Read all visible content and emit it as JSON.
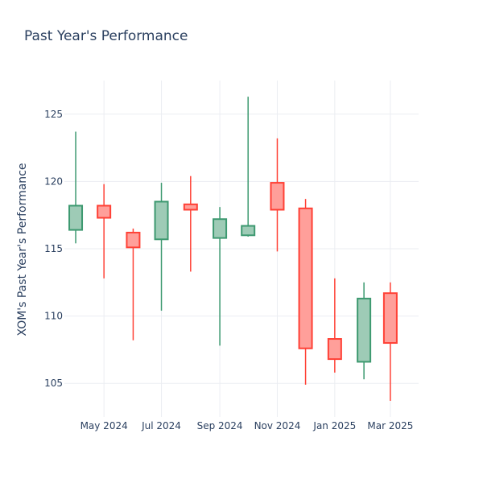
{
  "chart_data": {
    "type": "candlestick",
    "title": "Past Year's Performance",
    "xlabel": "",
    "ylabel": "XOM's Past Year's Performance",
    "ylim": [
      102.5,
      127.5
    ],
    "yticks": [
      105,
      110,
      115,
      120,
      125
    ],
    "xlim": [
      "2024-03-20",
      "2025-03-31"
    ],
    "xticks": [
      {
        "date": "2024-05-01",
        "label": "May 2024"
      },
      {
        "date": "2024-07-01",
        "label": "Jul 2024"
      },
      {
        "date": "2024-09-01",
        "label": "Sep 2024"
      },
      {
        "date": "2024-11-01",
        "label": "Nov 2024"
      },
      {
        "date": "2025-01-01",
        "label": "Jan 2025"
      },
      {
        "date": "2025-03-01",
        "label": "Mar 2025"
      }
    ],
    "colors": {
      "increasing_line": "#3d9970",
      "increasing_fill": "#9ecbb6",
      "decreasing_line": "#ff4136",
      "decreasing_fill": "#ff9f9a",
      "grid": "#ebedf2",
      "text": "#2a3f5f"
    },
    "candles": [
      {
        "date": "2024-04-01",
        "open": 116.4,
        "high": 123.7,
        "low": 115.4,
        "close": 118.2
      },
      {
        "date": "2024-05-01",
        "open": 118.2,
        "high": 119.8,
        "low": 112.8,
        "close": 117.3
      },
      {
        "date": "2024-06-01",
        "open": 116.2,
        "high": 116.5,
        "low": 108.2,
        "close": 115.1
      },
      {
        "date": "2024-07-01",
        "open": 115.7,
        "high": 119.9,
        "low": 110.4,
        "close": 118.5
      },
      {
        "date": "2024-08-01",
        "open": 118.3,
        "high": 120.4,
        "low": 113.3,
        "close": 117.9
      },
      {
        "date": "2024-09-01",
        "open": 115.8,
        "high": 118.1,
        "low": 107.8,
        "close": 117.2
      },
      {
        "date": "2024-10-01",
        "open": 116.0,
        "high": 126.3,
        "low": 115.9,
        "close": 116.7
      },
      {
        "date": "2024-11-01",
        "open": 119.9,
        "high": 123.2,
        "low": 114.8,
        "close": 117.9
      },
      {
        "date": "2024-12-01",
        "open": 118.0,
        "high": 118.7,
        "low": 104.9,
        "close": 107.6
      },
      {
        "date": "2025-01-01",
        "open": 108.3,
        "high": 112.8,
        "low": 105.8,
        "close": 106.8
      },
      {
        "date": "2025-02-01",
        "open": 106.6,
        "high": 112.5,
        "low": 105.3,
        "close": 111.3
      },
      {
        "date": "2025-03-01",
        "open": 111.7,
        "high": 112.5,
        "low": 103.7,
        "close": 108.0
      }
    ]
  }
}
